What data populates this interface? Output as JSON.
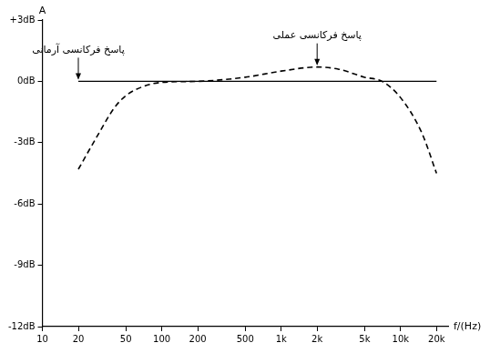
{
  "chart_data": {
    "type": "line",
    "x_label": "f/(Hz)",
    "y_label": "A",
    "log": "x",
    "grid": false,
    "x": [
      20,
      30,
      40,
      50,
      70,
      100,
      200,
      500,
      1000,
      2000,
      3000,
      5000,
      7000,
      10000,
      15000,
      20000
    ],
    "series": [
      {
        "name": "پاسخ فرکانسی آرمانی",
        "color": "#000000",
        "line_style": "solid",
        "values": [
          0,
          0,
          0,
          0,
          0,
          0,
          0,
          0,
          0,
          0,
          0,
          0,
          0,
          0,
          0,
          0
        ]
      },
      {
        "name": "پاسخ فرکانسی عملی",
        "color": "#000000",
        "line_style": "dashed",
        "values": [
          -4.3,
          -2.5,
          -1.3,
          -0.7,
          -0.25,
          -0.05,
          0,
          0.2,
          0.5,
          0.7,
          0.6,
          0.2,
          0,
          -0.8,
          -2.5,
          -4.5
        ]
      }
    ],
    "xlim": [
      10,
      25000
    ],
    "xticks": [
      10,
      20,
      50,
      100,
      200,
      500,
      {
        "value": 1000,
        "label": "1k"
      },
      {
        "value": 2000,
        "label": "2k"
      },
      {
        "value": 5000,
        "label": "5k"
      },
      {
        "value": 10000,
        "label": "10k"
      },
      {
        "value": 20000,
        "label": "20k"
      }
    ],
    "ylim": [
      -12,
      3
    ],
    "yticks": [
      {
        "value": -12,
        "label": "-12dB"
      },
      {
        "value": -9,
        "label": "-9dB"
      },
      {
        "value": -6,
        "label": "-6dB"
      },
      {
        "value": -3,
        "label": "-3dB"
      },
      {
        "value": 0,
        "label": "0dB"
      },
      {
        "value": 3,
        "label": "+3dB"
      }
    ]
  }
}
